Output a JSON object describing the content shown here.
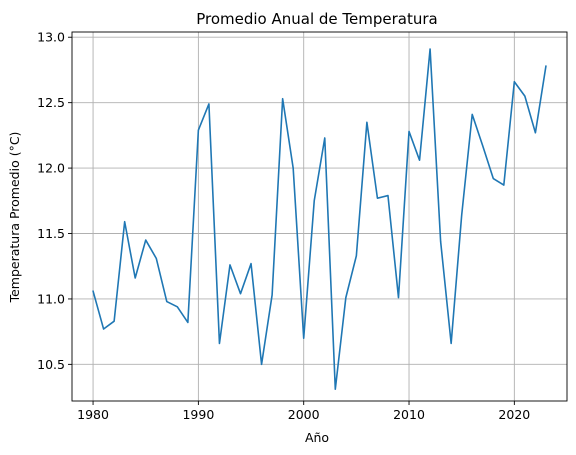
{
  "chart_data": {
    "type": "line",
    "title": "Promedio Anual de Temperatura",
    "xlabel": "Año",
    "ylabel": "Temperatura Promedio (°C)",
    "xlim": [
      1978,
      2025
    ],
    "ylim": [
      10.22,
      13.04
    ],
    "xticks": [
      1980,
      1990,
      2000,
      2010,
      2020
    ],
    "xtick_labels": [
      "1980",
      "1990",
      "2000",
      "2010",
      "2020"
    ],
    "yticks": [
      10.5,
      11.0,
      11.5,
      12.0,
      12.5,
      13.0
    ],
    "ytick_labels": [
      "10.5",
      "11.0",
      "11.5",
      "12.0",
      "12.5",
      "13.0"
    ],
    "grid": true,
    "legend": "none",
    "series": [
      {
        "color": "#1f77b4",
        "x": [
          1980,
          1981,
          1982,
          1983,
          1984,
          1985,
          1986,
          1987,
          1988,
          1989,
          1990,
          1991,
          1992,
          1993,
          1994,
          1995,
          1996,
          1997,
          1998,
          1999,
          2000,
          2001,
          2002,
          2003,
          2004,
          2005,
          2006,
          2007,
          2008,
          2009,
          2010,
          2011,
          2012,
          2013,
          2014,
          2015,
          2016,
          2017,
          2018,
          2019,
          2020,
          2021,
          2022,
          2023
        ],
        "values": [
          11.06,
          10.77,
          10.83,
          11.59,
          11.16,
          11.45,
          11.31,
          10.98,
          10.94,
          10.82,
          12.29,
          12.49,
          10.66,
          11.26,
          11.04,
          11.27,
          10.5,
          11.03,
          12.53,
          12.0,
          10.7,
          11.75,
          12.23,
          10.31,
          11.01,
          11.33,
          12.35,
          11.77,
          11.79,
          11.01,
          12.28,
          12.06,
          12.91,
          11.44,
          10.66,
          11.64,
          12.41,
          12.17,
          11.92,
          11.87,
          12.66,
          12.55,
          12.27,
          12.78
        ]
      }
    ]
  }
}
